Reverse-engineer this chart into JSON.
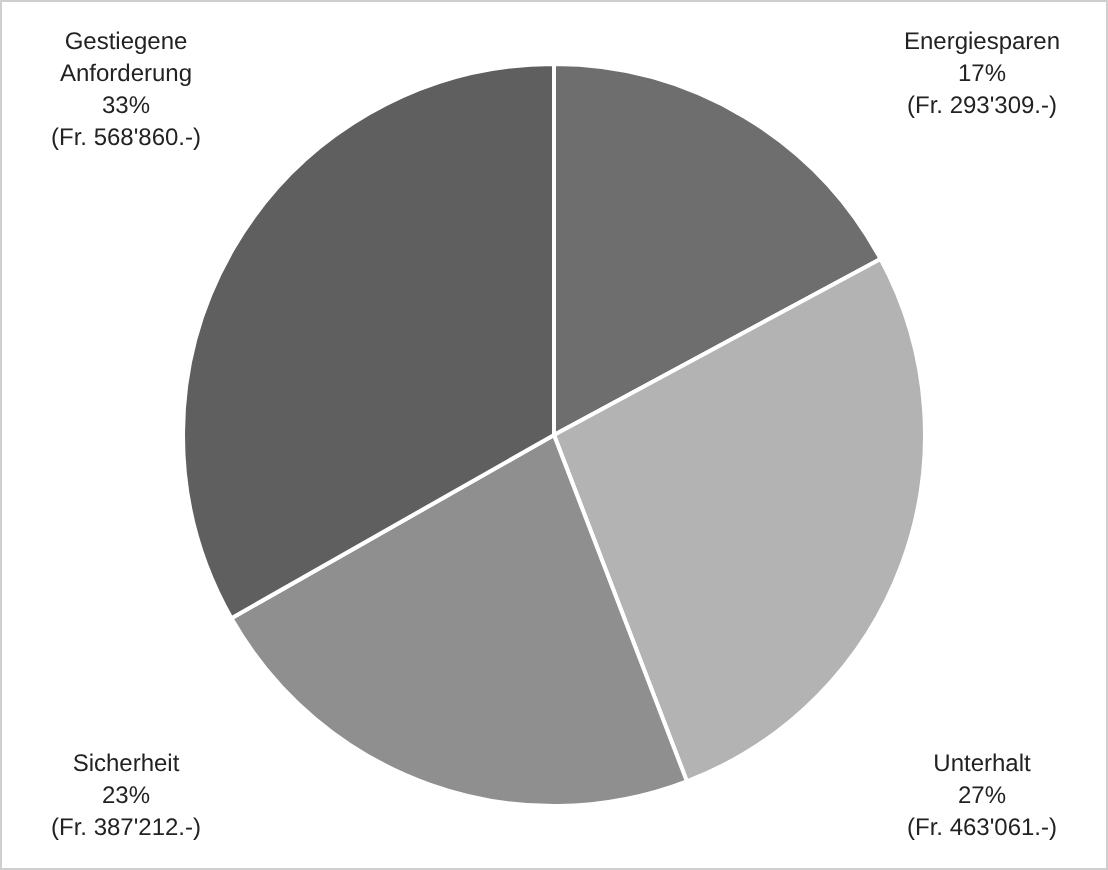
{
  "chart_data": {
    "type": "pie",
    "categories": [
      "Energiesparen",
      "Unterhalt",
      "Sicherheit",
      "Gestiegene Anforderung"
    ],
    "values": [
      293309,
      463061,
      387212,
      568860
    ],
    "colors": [
      "#6e6e6e",
      "#b3b3b3",
      "#8f8f8f",
      "#5f5f5f"
    ],
    "value_labels": [
      "17%\n(Fr. 293'309.-)",
      "27%\n(Fr. 463'061.-)",
      "23%\n(Fr. 387'212.-)",
      "33%\n(Fr. 568'860.-)"
    ],
    "legend": false
  }
}
